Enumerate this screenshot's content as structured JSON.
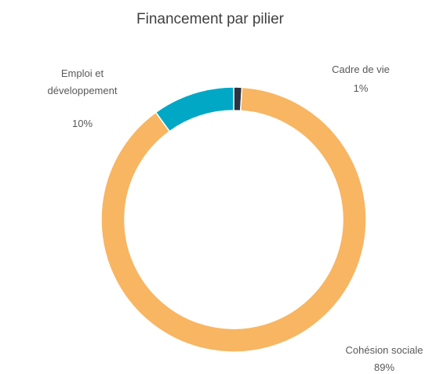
{
  "chart_data": {
    "type": "donut",
    "title": "Financement par pilier",
    "categories": [
      "Cadre de vie",
      "Cohésion sociale",
      "Emploi et développement"
    ],
    "values": [
      1,
      89,
      10
    ],
    "value_labels": [
      "1%",
      "89%",
      "10%"
    ],
    "colors": [
      "#2b3440",
      "#f8b562",
      "#00a8c5"
    ]
  }
}
